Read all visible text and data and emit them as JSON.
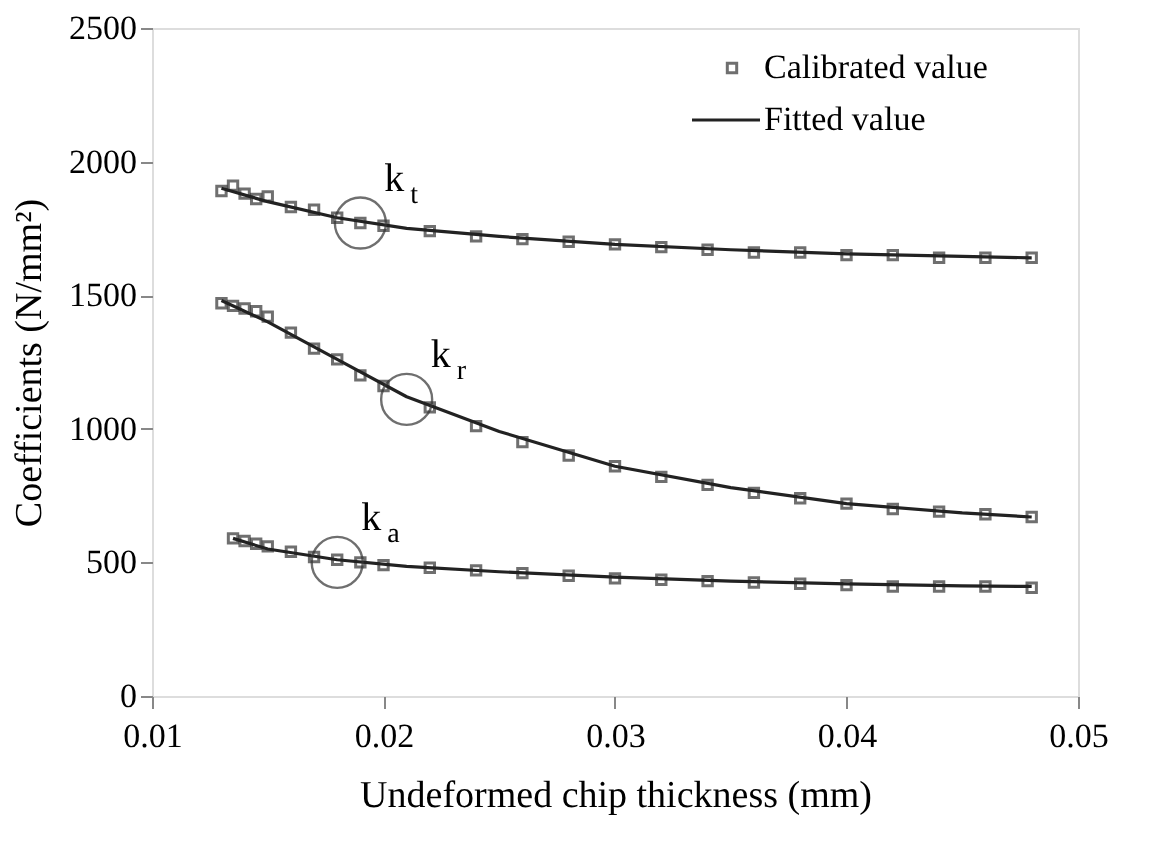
{
  "chart_data": {
    "type": "scatter",
    "xlabel": "Undeformed chip thickness (mm)",
    "ylabel": "Coefficients (N/mm²)",
    "xlim": [
      0.01,
      0.05
    ],
    "xticks": [
      0.01,
      0.02,
      0.03,
      0.04,
      0.05
    ],
    "ylim": [
      0,
      2500
    ],
    "yticks": [
      0,
      500,
      1000,
      1500,
      2000,
      2500
    ],
    "grid": false,
    "legend": "top right",
    "series": [
      {
        "name": "Calibrated value",
        "type": "scatter",
        "marker": "square",
        "color": "#333333",
        "x": [
          0.013,
          0.0135,
          0.014,
          0.0145,
          0.015,
          0.016,
          0.017,
          0.018,
          0.019,
          0.02,
          0.022,
          0.024,
          0.026,
          0.028,
          0.03,
          0.032,
          0.034,
          0.036,
          0.038,
          0.04,
          0.042,
          0.044,
          0.046,
          0.048,
          0.013,
          0.0135,
          0.014,
          0.0145,
          0.015,
          0.016,
          0.017,
          0.018,
          0.019,
          0.02,
          0.022,
          0.024,
          0.026,
          0.028,
          0.03,
          0.032,
          0.034,
          0.036,
          0.038,
          0.04,
          0.042,
          0.044,
          0.046,
          0.048,
          0.0135,
          0.014,
          0.0145,
          0.015,
          0.016,
          0.017,
          0.018,
          0.019,
          0.02,
          0.022,
          0.024,
          0.026,
          0.028,
          0.03,
          0.032,
          0.034,
          0.036,
          0.038,
          0.04,
          0.042,
          0.044,
          0.046,
          0.048
        ],
        "values": [
          1890,
          1910,
          1880,
          1860,
          1870,
          1830,
          1820,
          1790,
          1770,
          1760,
          1740,
          1720,
          1710,
          1700,
          1690,
          1680,
          1670,
          1660,
          1660,
          1650,
          1650,
          1640,
          1640,
          1640,
          1470,
          1460,
          1450,
          1440,
          1420,
          1360,
          1300,
          1260,
          1200,
          1160,
          1080,
          1010,
          950,
          900,
          860,
          820,
          790,
          760,
          740,
          720,
          700,
          690,
          680,
          670,
          590,
          580,
          570,
          560,
          540,
          520,
          510,
          500,
          490,
          480,
          470,
          460,
          450,
          440,
          435,
          430,
          425,
          420,
          415,
          410,
          410,
          410,
          405
        ]
      },
      {
        "name": "Fitted value",
        "type": "line",
        "color": "#222222",
        "line_style": "solid",
        "x": [
          0.013,
          0.015,
          0.018,
          0.021,
          0.025,
          0.03,
          0.035,
          0.04,
          0.045,
          0.048
        ],
        "values": [
          1900,
          1850,
          1790,
          1750,
          1720,
          1690,
          1670,
          1655,
          1645,
          1640
        ]
      },
      {
        "type": "line",
        "color": "#222222",
        "line_style": "solid",
        "x": [
          0.013,
          0.015,
          0.018,
          0.021,
          0.025,
          0.03,
          0.035,
          0.04,
          0.045,
          0.048
        ],
        "values": [
          1480,
          1400,
          1260,
          1120,
          990,
          860,
          780,
          720,
          685,
          670
        ]
      },
      {
        "type": "line",
        "color": "#222222",
        "line_style": "solid",
        "x": [
          0.0135,
          0.015,
          0.018,
          0.021,
          0.025,
          0.03,
          0.035,
          0.04,
          0.045,
          0.048
        ],
        "values": [
          590,
          550,
          510,
          485,
          465,
          445,
          430,
          420,
          412,
          410
        ]
      }
    ],
    "annotations": [
      {
        "text": "k$_{t}$",
        "x": 0.019,
        "y": 1770
      },
      {
        "text": "k$_{r}$",
        "x": 0.021,
        "y": 1110
      },
      {
        "text": "k$_{a}$",
        "x": 0.018,
        "y": 500
      }
    ]
  }
}
